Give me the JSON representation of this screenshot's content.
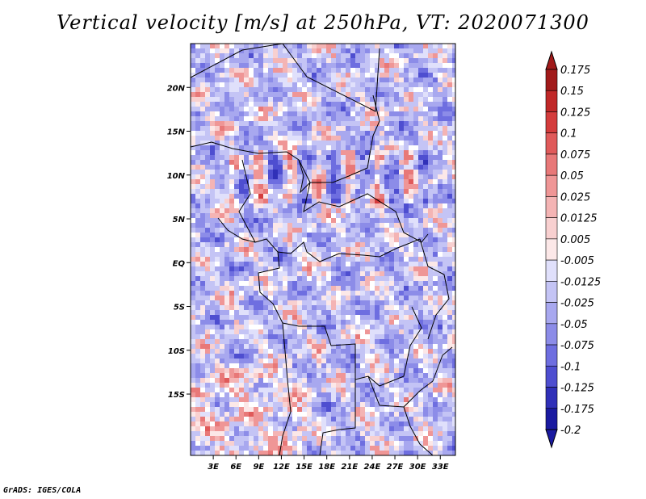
{
  "title": "Vertical velocity [m/s] at 250hPa, VT: 2020071300",
  "credit": "GrADS: IGES/COLA",
  "map": {
    "variable": "Vertical velocity",
    "units": "m/s",
    "level": "250hPa",
    "valid_time": "2020071300",
    "lon_range": [
      0,
      35
    ],
    "lat_range": [
      -22,
      25
    ],
    "lon_ticks": [
      "3E",
      "6E",
      "9E",
      "12E",
      "15E",
      "18E",
      "21E",
      "24E",
      "27E",
      "30E",
      "33E"
    ],
    "lat_ticks": [
      "20N",
      "15N",
      "10N",
      "5N",
      "EQ",
      "5S",
      "10S",
      "15S"
    ]
  },
  "colorbar": {
    "levels": [
      "0.175",
      "0.15",
      "0.125",
      "0.1",
      "0.075",
      "0.05",
      "0.025",
      "0.0125",
      "0.005",
      "-0.005",
      "-0.0125",
      "-0.025",
      "-0.05",
      "-0.075",
      "-0.1",
      "-0.125",
      "-0.175",
      "-0.2"
    ],
    "colors": [
      "#a11a1a",
      "#c02828",
      "#d43c3c",
      "#e05a5a",
      "#e87878",
      "#ef9696",
      "#f4b4b4",
      "#f8d0d0",
      "#fce8e8",
      "#ffffff",
      "#e0e0fb",
      "#c4c4f5",
      "#a8a8ef",
      "#8c8ce8",
      "#6e6ee0",
      "#4e4ed0",
      "#3030b8",
      "#1a1aa0"
    ]
  }
}
